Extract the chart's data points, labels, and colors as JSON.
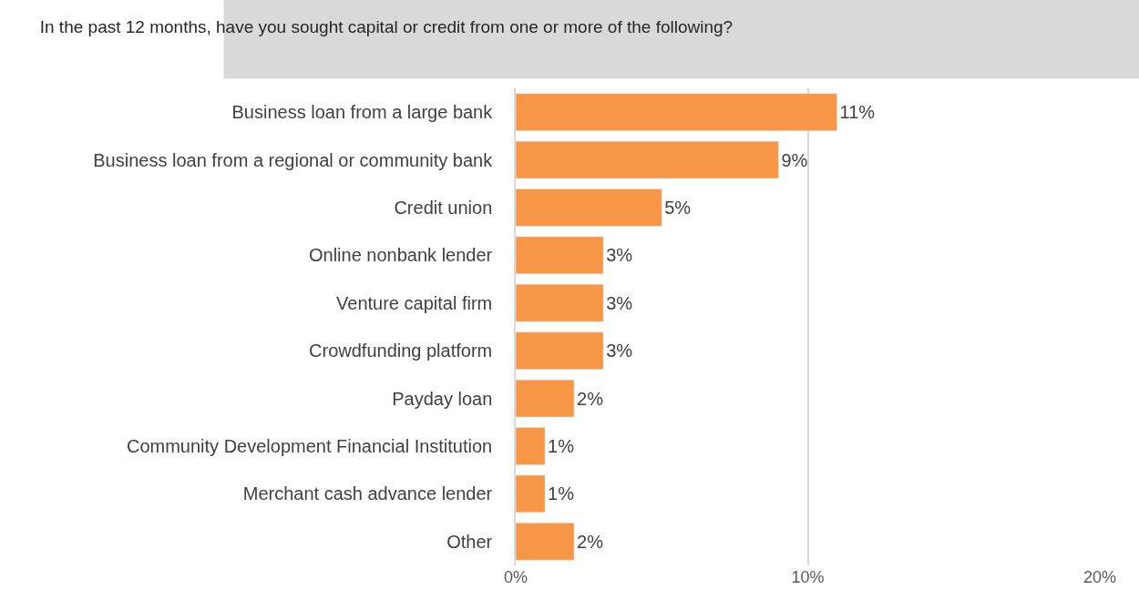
{
  "chart_data": {
    "type": "bar",
    "orientation": "horizontal",
    "title": "In the past 12 months, have you sought capital or credit from one or more of the following?",
    "categories": [
      "Business loan from a large bank",
      "Business loan from a regional or community bank",
      "Credit union",
      "Online nonbank lender",
      "Venture capital firm",
      "Crowdfunding platform",
      "Payday loan",
      "Community Development Financial Institution",
      "Merchant cash advance lender",
      "Other"
    ],
    "values": [
      11,
      9,
      5,
      3,
      3,
      3,
      2,
      1,
      1,
      2
    ],
    "value_labels": [
      "11%",
      "9%",
      "5%",
      "3%",
      "3%",
      "3%",
      "2%",
      "1%",
      "1%",
      "2%"
    ],
    "color": "#f79646",
    "xlim": [
      0,
      20
    ],
    "xticks": [
      {
        "value": 0,
        "label": "0%"
      },
      {
        "value": 10,
        "label": "10%"
      },
      {
        "value": 20,
        "label": "20%"
      }
    ],
    "grid": "x",
    "legend": false
  }
}
